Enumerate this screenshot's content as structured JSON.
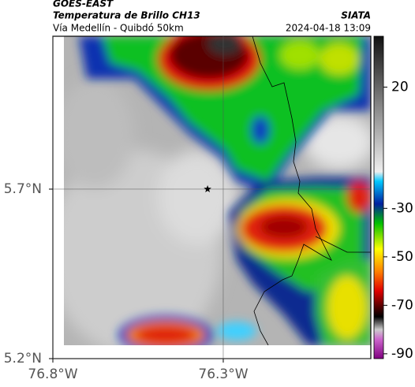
{
  "header": {
    "source": "GOES-EAST",
    "title": "Temperatura de Brillo CH13",
    "subtitle": "Vía Medellín - Quibdó 50km",
    "org": "SIATA",
    "timestamp": "2024-04-18 13:09"
  },
  "map": {
    "xlim": [
      -76.8,
      -75.867
    ],
    "ylim": [
      5.2,
      6.151
    ],
    "xticks": [
      {
        "value": -76.8,
        "label": "76.8°W"
      },
      {
        "value": -76.3,
        "label": "76.3°W"
      }
    ],
    "yticks": [
      {
        "value": 5.7,
        "label": "5.7°N"
      },
      {
        "value": 5.2,
        "label": "5.2°N"
      }
    ],
    "marker": {
      "lon": -76.346,
      "lat": 5.7
    }
  },
  "colorbar": {
    "lim": [
      -92,
      41
    ],
    "ticks": [
      20,
      -30,
      -50,
      -70,
      -90
    ]
  }
}
